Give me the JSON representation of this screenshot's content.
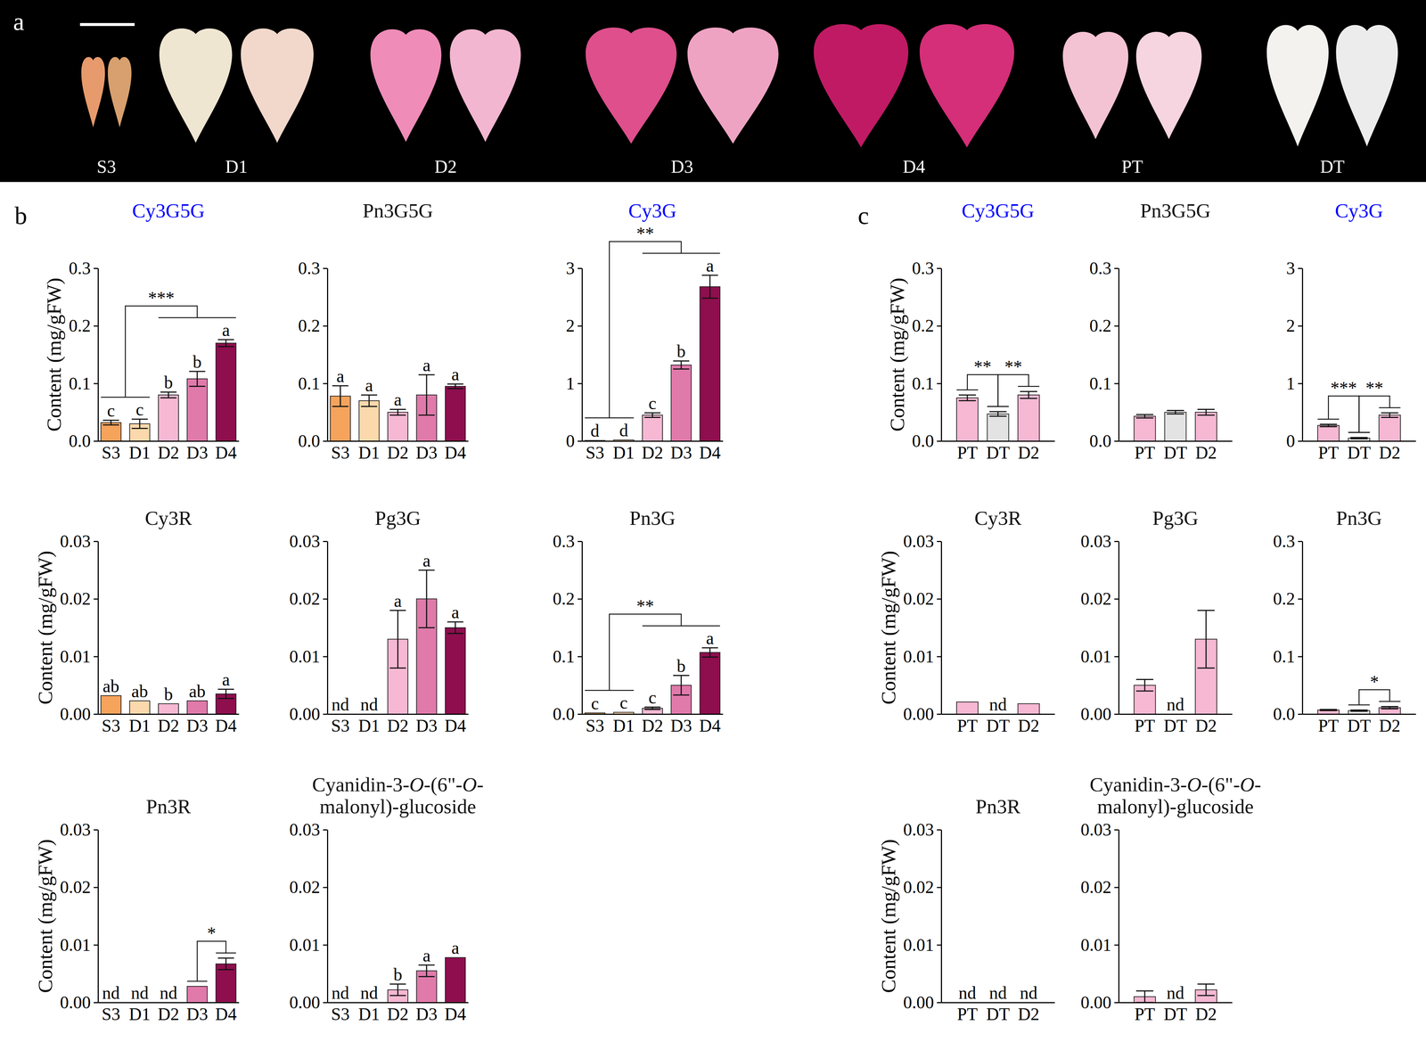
{
  "photo": {
    "panel": "a",
    "samples": [
      "S3",
      "D1",
      "D2",
      "D3",
      "D4",
      "PT",
      "DT"
    ]
  },
  "chart_data": [
    {
      "panel": "b",
      "type": "bar",
      "title": "Cy3G5G",
      "title_color": "#0000ff",
      "ylabel": "Content (mg/gFW)",
      "categories": [
        "S3",
        "D1",
        "D2",
        "D3",
        "D4"
      ],
      "values": [
        0.032,
        0.03,
        0.08,
        0.108,
        0.17
      ],
      "errors": [
        0.004,
        0.008,
        0.005,
        0.013,
        0.006
      ],
      "letters": [
        "c",
        "c",
        "b",
        "b",
        "a"
      ],
      "colors": [
        "#f6a35c",
        "#fcd9ac",
        "#f6b8d3",
        "#e07aab",
        "#8e0e4e"
      ],
      "ylim": [
        0,
        0.3
      ],
      "yticks": [
        {
          "value": 0,
          "label": "0.0"
        },
        0.1,
        0.2,
        0.3
      ],
      "brackets": [
        {
          "groups": [
            [
              "S3",
              "D1"
            ],
            [
              "D2",
              "D3",
              "D4"
            ]
          ],
          "label": "***"
        }
      ]
    },
    {
      "panel": "b",
      "type": "bar",
      "title": "Pn3G5G",
      "categories": [
        "S3",
        "D1",
        "D2",
        "D3",
        "D4"
      ],
      "values": [
        0.078,
        0.07,
        0.05,
        0.08,
        0.095
      ],
      "errors": [
        0.018,
        0.01,
        0.005,
        0.035,
        0.004
      ],
      "letters": [
        "a",
        "a",
        "a",
        "a",
        "a"
      ],
      "colors": [
        "#f6a35c",
        "#fcd9ac",
        "#f6b8d3",
        "#e07aab",
        "#8e0e4e"
      ],
      "ylim": [
        0,
        0.3
      ],
      "yticks": [
        {
          "value": 0,
          "label": "0.0"
        },
        0.1,
        0.2,
        0.3
      ]
    },
    {
      "panel": "b",
      "type": "bar",
      "title": "Cy3G",
      "title_color": "#0000ff",
      "categories": [
        "S3",
        "D1",
        "D2",
        "D3",
        "D4"
      ],
      "values": [
        0.01,
        0.02,
        0.45,
        1.32,
        2.68
      ],
      "errors": [
        null,
        null,
        0.04,
        0.07,
        0.2
      ],
      "letters": [
        "d",
        "d",
        "c",
        "b",
        "a"
      ],
      "colors": [
        "#f6a35c",
        "#fcd9ac",
        "#f6b8d3",
        "#e07aab",
        "#8e0e4e"
      ],
      "ylim": [
        0,
        3
      ],
      "yticks": [
        0,
        1,
        2,
        3
      ],
      "brackets": [
        {
          "groups": [
            [
              "S3",
              "D1"
            ],
            [
              "D2",
              "D3",
              "D4"
            ]
          ],
          "label": "**"
        }
      ]
    },
    {
      "panel": "b",
      "type": "bar",
      "title": "Cy3R",
      "ylabel": "Content (mg/gFW)",
      "categories": [
        "S3",
        "D1",
        "D2",
        "D3",
        "D4"
      ],
      "values": [
        0.0032,
        0.0023,
        0.0018,
        0.0023,
        0.0035
      ],
      "errors": [
        null,
        null,
        null,
        null,
        0.0008
      ],
      "letters": [
        "ab",
        "ab",
        "b",
        "ab",
        "a"
      ],
      "colors": [
        "#f6a35c",
        "#fcd9ac",
        "#f6b8d3",
        "#e07aab",
        "#8e0e4e"
      ],
      "ylim": [
        0,
        0.03
      ],
      "yticks": [
        {
          "value": 0,
          "label": "0.00"
        },
        0.01,
        0.02,
        0.03
      ]
    },
    {
      "panel": "b",
      "type": "bar",
      "title": "Pg3G",
      "categories": [
        "S3",
        "D1",
        "D2",
        "D3",
        "D4"
      ],
      "values": [
        null,
        null,
        0.013,
        0.02,
        0.015
      ],
      "errors": [
        null,
        null,
        0.005,
        0.005,
        0.001
      ],
      "letters": [
        "nd",
        "nd",
        "a",
        "a",
        "a"
      ],
      "colors": [
        "#f6a35c",
        "#fcd9ac",
        "#f6b8d3",
        "#e07aab",
        "#8e0e4e"
      ],
      "ylim": [
        0,
        0.03
      ],
      "yticks": [
        {
          "value": 0,
          "label": "0.00"
        },
        0.01,
        0.02,
        0.03
      ]
    },
    {
      "panel": "b",
      "type": "bar",
      "title": "Pn3G",
      "categories": [
        "S3",
        "D1",
        "D2",
        "D3",
        "D4"
      ],
      "values": [
        0.002,
        0.003,
        0.01,
        0.05,
        0.107
      ],
      "errors": [
        null,
        null,
        0.002,
        0.017,
        0.008
      ],
      "letters": [
        "c",
        "c",
        "c",
        "b",
        "a"
      ],
      "colors": [
        "#f6a35c",
        "#fcd9ac",
        "#f6b8d3",
        "#e07aab",
        "#8e0e4e"
      ],
      "ylim": [
        0,
        0.3
      ],
      "yticks": [
        {
          "value": 0,
          "label": "0.0"
        },
        0.1,
        0.2,
        0.3
      ],
      "brackets": [
        {
          "groups": [
            [
              "S3",
              "D1"
            ],
            [
              "D2",
              "D3",
              "D4"
            ]
          ],
          "label": "**"
        }
      ]
    },
    {
      "panel": "b",
      "type": "bar",
      "title": "Pn3R",
      "ylabel": "Content (mg/gFW)",
      "categories": [
        "S3",
        "D1",
        "D2",
        "D3",
        "D4"
      ],
      "values": [
        null,
        null,
        null,
        0.0028,
        0.0067
      ],
      "errors": [
        null,
        null,
        null,
        null,
        0.001
      ],
      "letters": [
        "nd",
        "nd",
        "nd",
        null,
        null
      ],
      "colors": [
        "#f6a35c",
        "#fcd9ac",
        "#f6b8d3",
        "#e07aab",
        "#8e0e4e"
      ],
      "ylim": [
        0,
        0.03
      ],
      "yticks": [
        {
          "value": 0,
          "label": "0.00"
        },
        0.01,
        0.02,
        0.03
      ],
      "brackets": [
        {
          "groups": [
            [
              "D3"
            ],
            [
              "D4"
            ]
          ],
          "label": "*"
        }
      ]
    },
    {
      "panel": "b",
      "type": "bar",
      "title": "Cyanidin-3-O-(6\"-O-malonyl)-glucoside",
      "categories": [
        "S3",
        "D1",
        "D2",
        "D3",
        "D4"
      ],
      "values": [
        null,
        null,
        0.0022,
        0.0055,
        0.0078
      ],
      "errors": [
        null,
        null,
        0.001,
        0.001,
        null
      ],
      "letters": [
        "nd",
        "nd",
        "b",
        "a",
        "a"
      ],
      "colors": [
        "#f6a35c",
        "#fcd9ac",
        "#f6b8d3",
        "#e07aab",
        "#8e0e4e"
      ],
      "ylim": [
        0,
        0.03
      ],
      "yticks": [
        {
          "value": 0,
          "label": "0.00"
        },
        0.01,
        0.02,
        0.03
      ]
    },
    {
      "panel": "c",
      "type": "bar",
      "title": "Cy3G5G",
      "title_color": "#0000ff",
      "ylabel": "Content (mg/gFW)",
      "categories": [
        "PT",
        "DT",
        "D2"
      ],
      "values": [
        0.075,
        0.047,
        0.08
      ],
      "errors": [
        0.005,
        0.004,
        0.006
      ],
      "colors": [
        "#f6b8d3",
        "#e3e3e3",
        "#f6b8d3"
      ],
      "ylim": [
        0,
        0.3
      ],
      "yticks": [
        {
          "value": 0,
          "label": "0.0"
        },
        0.1,
        0.2,
        0.3
      ],
      "brackets": [
        {
          "groups": [
            [
              "PT"
            ],
            [
              "DT"
            ]
          ],
          "label": "**"
        },
        {
          "groups": [
            [
              "DT"
            ],
            [
              "D2"
            ]
          ],
          "label": "**"
        }
      ]
    },
    {
      "panel": "c",
      "type": "bar",
      "title": "Pn3G5G",
      "categories": [
        "PT",
        "DT",
        "D2"
      ],
      "values": [
        0.043,
        0.05,
        0.05
      ],
      "errors": [
        0.003,
        0.003,
        0.005
      ],
      "colors": [
        "#f6b8d3",
        "#e3e3e3",
        "#f6b8d3"
      ],
      "ylim": [
        0,
        0.3
      ],
      "yticks": [
        {
          "value": 0,
          "label": "0.0"
        },
        0.1,
        0.2,
        0.3
      ]
    },
    {
      "panel": "c",
      "type": "bar",
      "title": "Cy3G",
      "title_color": "#0000ff",
      "categories": [
        "PT",
        "DT",
        "D2"
      ],
      "values": [
        0.27,
        0.05,
        0.45
      ],
      "errors": [
        0.02,
        0.01,
        0.04
      ],
      "colors": [
        "#f6b8d3",
        "#e3e3e3",
        "#f6b8d3"
      ],
      "ylim": [
        0,
        3
      ],
      "yticks": [
        0,
        1,
        2,
        3
      ],
      "brackets": [
        {
          "groups": [
            [
              "PT"
            ],
            [
              "DT"
            ]
          ],
          "label": "***"
        },
        {
          "groups": [
            [
              "DT"
            ],
            [
              "D2"
            ]
          ],
          "label": "**"
        }
      ]
    },
    {
      "panel": "c",
      "type": "bar",
      "title": "Cy3R",
      "ylabel": "Content (mg/gFW)",
      "categories": [
        "PT",
        "DT",
        "D2"
      ],
      "values": [
        0.0021,
        null,
        0.0018
      ],
      "errors": [
        null,
        null,
        null
      ],
      "letters": [
        null,
        "nd",
        null
      ],
      "colors": [
        "#f6b8d3",
        "#e3e3e3",
        "#f6b8d3"
      ],
      "ylim": [
        0,
        0.03
      ],
      "yticks": [
        {
          "value": 0,
          "label": "0.00"
        },
        0.01,
        0.02,
        0.03
      ]
    },
    {
      "panel": "c",
      "type": "bar",
      "title": "Pg3G",
      "categories": [
        "PT",
        "DT",
        "D2"
      ],
      "values": [
        0.005,
        null,
        0.013
      ],
      "errors": [
        0.001,
        null,
        0.005
      ],
      "letters": [
        null,
        "nd",
        null
      ],
      "colors": [
        "#f6b8d3",
        "#e3e3e3",
        "#f6b8d3"
      ],
      "ylim": [
        0,
        0.03
      ],
      "yticks": [
        {
          "value": 0,
          "label": "0.00"
        },
        0.01,
        0.02,
        0.03
      ]
    },
    {
      "panel": "c",
      "type": "bar",
      "title": "Pn3G",
      "categories": [
        "PT",
        "DT",
        "D2"
      ],
      "values": [
        0.007,
        0.006,
        0.011
      ],
      "errors": [
        0.001,
        0.001,
        0.002
      ],
      "colors": [
        "#f6b8d3",
        "#e3e3e3",
        "#f6b8d3"
      ],
      "ylim": [
        0,
        0.3
      ],
      "yticks": [
        {
          "value": 0,
          "label": "0.0"
        },
        0.1,
        0.2,
        0.3
      ],
      "brackets": [
        {
          "groups": [
            [
              "DT"
            ],
            [
              "D2"
            ]
          ],
          "label": "*"
        }
      ]
    },
    {
      "panel": "c",
      "type": "bar",
      "title": "Pn3R",
      "ylabel": "Content (mg/gFW)",
      "categories": [
        "PT",
        "DT",
        "D2"
      ],
      "values": [
        null,
        null,
        null
      ],
      "errors": [
        null,
        null,
        null
      ],
      "letters": [
        "nd",
        "nd",
        "nd"
      ],
      "colors": [
        "#f6b8d3",
        "#e3e3e3",
        "#f6b8d3"
      ],
      "ylim": [
        0,
        0.03
      ],
      "yticks": [
        {
          "value": 0,
          "label": "0.00"
        },
        0.01,
        0.02,
        0.03
      ]
    },
    {
      "panel": "c",
      "type": "bar",
      "title": "Cyanidin-3-O-(6\"-O-malonyl)-glucoside",
      "categories": [
        "PT",
        "DT",
        "D2"
      ],
      "values": [
        0.001,
        null,
        0.0022
      ],
      "errors": [
        0.001,
        null,
        0.001
      ],
      "letters": [
        null,
        "nd",
        null
      ],
      "colors": [
        "#f6b8d3",
        "#e3e3e3",
        "#f6b8d3"
      ],
      "ylim": [
        0,
        0.03
      ],
      "yticks": [
        {
          "value": 0,
          "label": "0.00"
        },
        0.01,
        0.02,
        0.03
      ]
    }
  ]
}
